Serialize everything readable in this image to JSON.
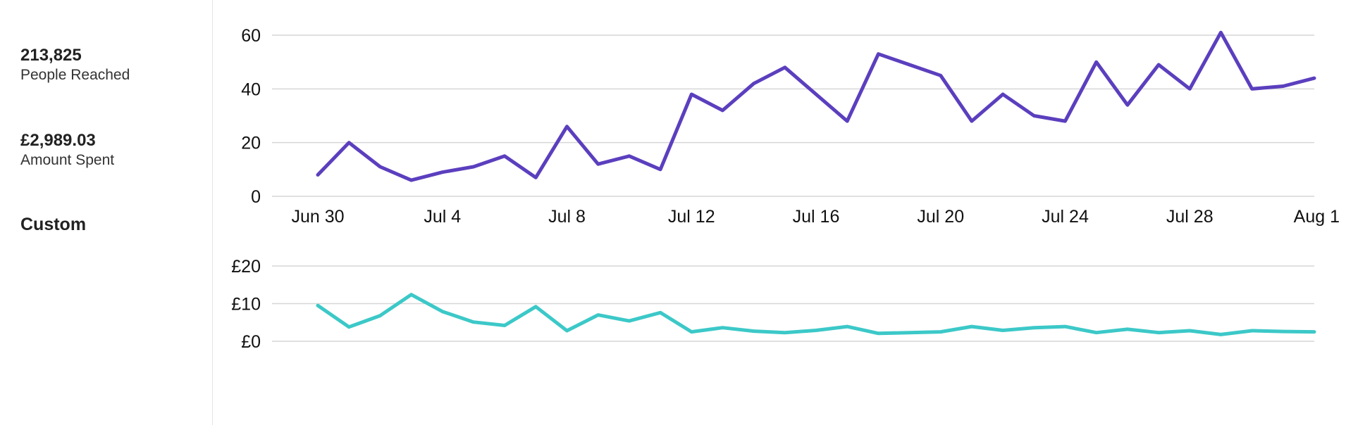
{
  "sidebar": {
    "metrics": [
      {
        "value": "213,825",
        "label": "People Reached"
      },
      {
        "value": "£2,989.03",
        "label": "Amount Spent"
      }
    ],
    "custom_label": "Custom"
  },
  "colors": {
    "reach": "#5b3fbe",
    "spend": "#3cc8c8",
    "grid": "#d6d6d6"
  },
  "chart_data": [
    {
      "type": "line",
      "x": [
        "Jun 30",
        "Jul 1",
        "Jul 2",
        "Jul 3",
        "Jul 4",
        "Jul 5",
        "Jul 6",
        "Jul 7",
        "Jul 8",
        "Jul 9",
        "Jul 10",
        "Jul 11",
        "Jul 12",
        "Jul 13",
        "Jul 14",
        "Jul 15",
        "Jul 16",
        "Jul 17",
        "Jul 18",
        "Jul 19",
        "Jul 20",
        "Jul 21",
        "Jul 22",
        "Jul 23",
        "Jul 24",
        "Jul 25",
        "Jul 26",
        "Jul 27",
        "Jul 28",
        "Jul 29",
        "Jul 30",
        "Jul 31",
        "Aug 1"
      ],
      "series": [
        {
          "values": [
            8,
            20,
            11,
            6,
            9,
            11,
            15,
            7,
            26,
            12,
            15,
            10,
            38,
            32,
            42,
            48,
            38,
            28,
            53,
            49,
            45,
            28,
            38,
            30,
            28,
            50,
            34,
            49,
            40,
            61,
            40,
            41,
            44
          ]
        }
      ],
      "ylim": [
        0,
        60
      ],
      "yticks": [
        "0",
        "20",
        "40",
        "60"
      ],
      "xticks": [
        "Jun 30",
        "Jul 4",
        "Jul 8",
        "Jul 12",
        "Jul 16",
        "Jul 20",
        "Jul 24",
        "Jul 28",
        "Aug 1"
      ],
      "grid": true
    },
    {
      "type": "line",
      "x": [
        "Jun 30",
        "Jul 1",
        "Jul 2",
        "Jul 3",
        "Jul 4",
        "Jul 5",
        "Jul 6",
        "Jul 7",
        "Jul 8",
        "Jul 9",
        "Jul 10",
        "Jul 11",
        "Jul 12",
        "Jul 13",
        "Jul 14",
        "Jul 15",
        "Jul 16",
        "Jul 17",
        "Jul 18",
        "Jul 19",
        "Jul 20",
        "Jul 21",
        "Jul 22",
        "Jul 23",
        "Jul 24",
        "Jul 25",
        "Jul 26",
        "Jul 27",
        "Jul 28",
        "Jul 29",
        "Jul 30",
        "Jul 31",
        "Aug 1"
      ],
      "series": [
        {
          "values": [
            9.5,
            3.8,
            6.8,
            12.4,
            7.9,
            5.1,
            4.2,
            9.2,
            2.8,
            7,
            5.4,
            7.6,
            2.5,
            3.6,
            2.7,
            2.3,
            2.9,
            3.9,
            2.1,
            2.3,
            2.5,
            3.9,
            2.9,
            3.6,
            3.9,
            2.3,
            3.2,
            2.3,
            2.8,
            1.8,
            2.8,
            2.6,
            2.5
          ]
        }
      ],
      "ylim": [
        0,
        20
      ],
      "yticks": [
        "£0",
        "£10",
        "£20"
      ],
      "grid": true
    }
  ]
}
